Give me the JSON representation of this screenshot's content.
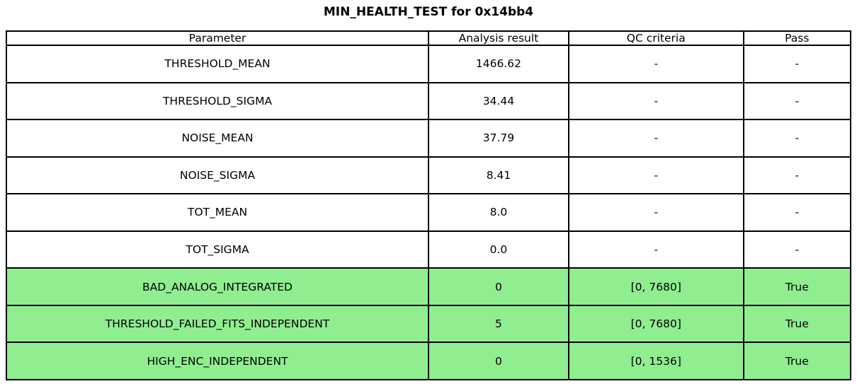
{
  "figure": {
    "title": "MIN_HEALTH_TEST for 0x14bb4",
    "background_color": "#ffffff",
    "border_color": "#000000",
    "highlight_color": "#90EE90"
  },
  "chart_data": {
    "type": "table",
    "title": "MIN_HEALTH_TEST for 0x14bb4",
    "columns": [
      "Parameter",
      "Analysis result",
      "QC criteria",
      "Pass"
    ],
    "rows": [
      {
        "parameter": "THRESHOLD_MEAN",
        "analysis_result": "1466.62",
        "qc_criteria": "-",
        "pass": "-",
        "highlight": false
      },
      {
        "parameter": "THRESHOLD_SIGMA",
        "analysis_result": "34.44",
        "qc_criteria": "-",
        "pass": "-",
        "highlight": false
      },
      {
        "parameter": "NOISE_MEAN",
        "analysis_result": "37.79",
        "qc_criteria": "-",
        "pass": "-",
        "highlight": false
      },
      {
        "parameter": "NOISE_SIGMA",
        "analysis_result": "8.41",
        "qc_criteria": "-",
        "pass": "-",
        "highlight": false
      },
      {
        "parameter": "TOT_MEAN",
        "analysis_result": "8.0",
        "qc_criteria": "-",
        "pass": "-",
        "highlight": false
      },
      {
        "parameter": "TOT_SIGMA",
        "analysis_result": "0.0",
        "qc_criteria": "-",
        "pass": "-",
        "highlight": false
      },
      {
        "parameter": "BAD_ANALOG_INTEGRATED",
        "analysis_result": "0",
        "qc_criteria": "[0, 7680]",
        "pass": "True",
        "highlight": true
      },
      {
        "parameter": "THRESHOLD_FAILED_FITS_INDEPENDENT",
        "analysis_result": "5",
        "qc_criteria": "[0, 7680]",
        "pass": "True",
        "highlight": true
      },
      {
        "parameter": "HIGH_ENC_INDEPENDENT",
        "analysis_result": "0",
        "qc_criteria": "[0, 1536]",
        "pass": "True",
        "highlight": true
      }
    ],
    "highlight_color": "#90EE90",
    "layout": {
      "column_width_fractions": [
        0.5,
        0.166,
        0.207,
        0.127
      ],
      "header_background": "#ffffff",
      "grid": "all-cell-borders"
    }
  }
}
